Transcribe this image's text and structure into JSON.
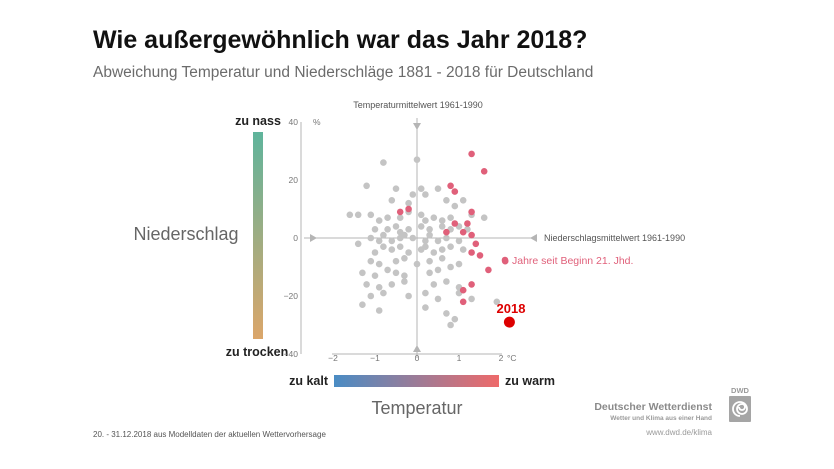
{
  "title": "Wie außergewöhnlich war das Jahr 2018?",
  "subtitle": "Abweichung Temperatur und Niederschläge 1881 - 2018 für Deutschland",
  "footnote": "20. - 31.12.2018 aus Modelldaten der aktuellen Wettervorhersage",
  "branding": {
    "name": "Deutscher Wetterdienst",
    "tagline": "Wetter und Klima aus einer Hand",
    "url": "www.dwd.de/klima",
    "logo_text": "DWD",
    "icon": "dwd-spiral-logo-icon"
  },
  "colors": {
    "older_years": "#c4c4c4",
    "recent_years": "#e0607a",
    "year_2018": "#dd0000",
    "axis": "#b5b5b5",
    "wet": "#5fb49c",
    "dry": "#dba66a",
    "cold": "#4a8cc4",
    "warm": "#ee6a6a"
  },
  "chart_data": {
    "type": "scatter",
    "xlabel": "Temperatur",
    "ylabel": "Niederschlag",
    "x_unit": "°C",
    "y_unit": "%",
    "xlim": [
      -2,
      2
    ],
    "ylim": [
      -40,
      40
    ],
    "x_ticks": [
      "−2",
      "−1",
      "0",
      "1",
      "2"
    ],
    "y_ticks": [
      "40",
      "20",
      "0",
      "−20",
      "−40"
    ],
    "y_scale": {
      "top": "zu nass",
      "bottom": "zu trocken"
    },
    "x_scale": {
      "left": "zu kalt",
      "right": "zu warm"
    },
    "temperature_reference": "Temperaturmittelwert 1961-1990",
    "precipitation_reference": "Niederschlagsmittelwert 1961-1990",
    "recent_label": "Jahre seit Beginn 21. Jhd.",
    "highlight": {
      "label": "2018",
      "x": 2.2,
      "y": -29
    },
    "series": [
      {
        "points": [
          [
            -0.8,
            26
          ],
          [
            0,
            27
          ],
          [
            -1.2,
            18
          ],
          [
            -0.5,
            17
          ],
          [
            -0.6,
            13
          ],
          [
            -0.2,
            12
          ],
          [
            -0.1,
            15
          ],
          [
            0.1,
            17
          ],
          [
            0.2,
            15
          ],
          [
            0.5,
            17
          ],
          [
            0.7,
            13
          ],
          [
            0.9,
            11
          ],
          [
            1.1,
            13
          ],
          [
            -1.6,
            8
          ],
          [
            -1.4,
            8
          ],
          [
            -1.1,
            8
          ],
          [
            -0.9,
            6
          ],
          [
            -0.7,
            7
          ],
          [
            -0.4,
            7
          ],
          [
            -0.2,
            9
          ],
          [
            0.1,
            8
          ],
          [
            0.2,
            6
          ],
          [
            0.4,
            7
          ],
          [
            0.6,
            6
          ],
          [
            0.8,
            7
          ],
          [
            1.3,
            8
          ],
          [
            1.6,
            7
          ],
          [
            -1.0,
            3
          ],
          [
            -0.7,
            3
          ],
          [
            -0.5,
            4
          ],
          [
            -0.4,
            2
          ],
          [
            -0.2,
            3
          ],
          [
            0.1,
            4
          ],
          [
            0.3,
            3
          ],
          [
            0.6,
            4
          ],
          [
            0.8,
            3
          ],
          [
            1.0,
            4
          ],
          [
            1.2,
            3
          ],
          [
            -1.4,
            -2
          ],
          [
            -1.1,
            0
          ],
          [
            -0.9,
            -1
          ],
          [
            -0.8,
            1
          ],
          [
            -0.6,
            -1
          ],
          [
            -0.4,
            0
          ],
          [
            -0.3,
            1
          ],
          [
            -0.1,
            0
          ],
          [
            0.2,
            -1
          ],
          [
            0.3,
            1
          ],
          [
            0.5,
            -1
          ],
          [
            0.7,
            0
          ],
          [
            1.0,
            -1
          ],
          [
            -1.0,
            -5
          ],
          [
            -0.8,
            -3
          ],
          [
            -0.6,
            -4
          ],
          [
            -0.4,
            -3
          ],
          [
            -0.2,
            -5
          ],
          [
            0.1,
            -4
          ],
          [
            0.2,
            -3
          ],
          [
            0.4,
            -5
          ],
          [
            0.6,
            -4
          ],
          [
            0.8,
            -3
          ],
          [
            1.1,
            -4
          ],
          [
            -1.1,
            -8
          ],
          [
            -0.9,
            -9
          ],
          [
            -0.5,
            -8
          ],
          [
            -0.3,
            -7
          ],
          [
            0.0,
            -9
          ],
          [
            0.3,
            -8
          ],
          [
            0.6,
            -7
          ],
          [
            0.8,
            -10
          ],
          [
            1.0,
            -9
          ],
          [
            -1.3,
            -12
          ],
          [
            -1.0,
            -13
          ],
          [
            -0.7,
            -11
          ],
          [
            -0.5,
            -12
          ],
          [
            -0.3,
            -13
          ],
          [
            0.3,
            -12
          ],
          [
            0.5,
            -11
          ],
          [
            -1.2,
            -16
          ],
          [
            -0.9,
            -17
          ],
          [
            -0.6,
            -16
          ],
          [
            -0.3,
            -15
          ],
          [
            0.4,
            -16
          ],
          [
            0.7,
            -15
          ],
          [
            1.0,
            -17
          ],
          [
            -1.1,
            -20
          ],
          [
            -0.8,
            -19
          ],
          [
            -0.2,
            -20
          ],
          [
            0.2,
            -19
          ],
          [
            0.5,
            -21
          ],
          [
            1.0,
            -19
          ],
          [
            -1.3,
            -23
          ],
          [
            -0.9,
            -25
          ],
          [
            0.2,
            -24
          ],
          [
            0.7,
            -26
          ],
          [
            0.8,
            -30
          ],
          [
            0.9,
            -28
          ],
          [
            1.3,
            -21
          ],
          [
            1.9,
            -22
          ]
        ]
      },
      {
        "points": [
          [
            1.3,
            29
          ],
          [
            1.6,
            23
          ],
          [
            0.8,
            18
          ],
          [
            0.9,
            16
          ],
          [
            1.3,
            9
          ],
          [
            0.9,
            5
          ],
          [
            1.2,
            5
          ],
          [
            -0.4,
            9
          ],
          [
            -0.2,
            10
          ],
          [
            0.7,
            2
          ],
          [
            1.1,
            2
          ],
          [
            1.3,
            1
          ],
          [
            1.4,
            -2
          ],
          [
            1.3,
            -5
          ],
          [
            1.5,
            -6
          ],
          [
            2.1,
            -8
          ],
          [
            1.7,
            -11
          ],
          [
            1.1,
            -18
          ],
          [
            1.3,
            -16
          ],
          [
            1.1,
            -22
          ]
        ]
      }
    ]
  }
}
